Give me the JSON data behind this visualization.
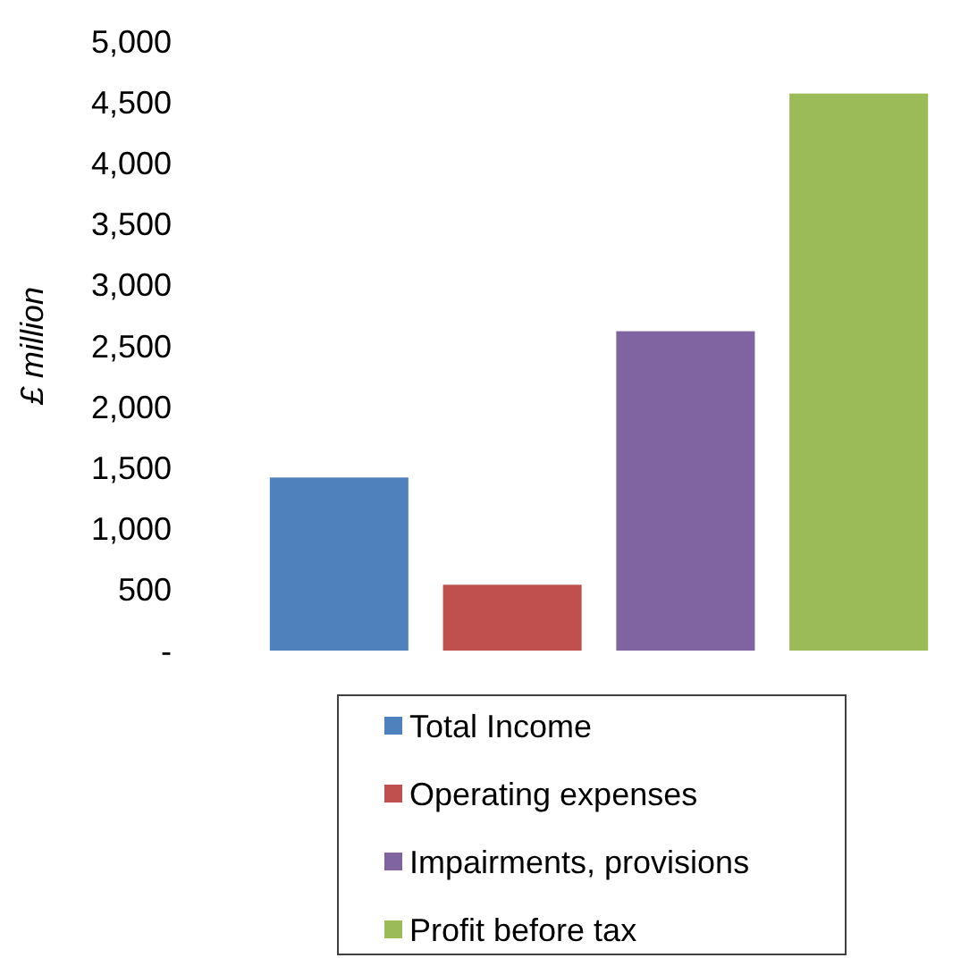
{
  "chart_data": {
    "type": "bar",
    "ylabel": "£ million",
    "categories": [
      null
    ],
    "series": [
      {
        "name": "Total Income",
        "color": "#4f81bd",
        "values": [
          1420
        ]
      },
      {
        "name": "Operating expenses",
        "color": "#c0504d",
        "values": [
          540
        ]
      },
      {
        "name": "Impairments, provisions",
        "color": "#8064a2",
        "values": [
          2620
        ]
      },
      {
        "name": "Profit before tax",
        "color": "#9bbb59",
        "values": [
          4570
        ]
      }
    ],
    "ylim": [
      0,
      5000
    ],
    "yticks": [
      {
        "value": 0,
        "label": "-"
      },
      {
        "value": 500,
        "label": "500"
      },
      {
        "value": 1000,
        "label": "1,000"
      },
      {
        "value": 1500,
        "label": "1,500"
      },
      {
        "value": 2000,
        "label": "2,000"
      },
      {
        "value": 2500,
        "label": "2,500"
      },
      {
        "value": 3000,
        "label": "3,000"
      },
      {
        "value": 3500,
        "label": "3,500"
      },
      {
        "value": 4000,
        "label": "4,000"
      },
      {
        "value": 4500,
        "label": "4,500"
      },
      {
        "value": 5000,
        "label": "5,000"
      }
    ],
    "legend": "bottom"
  }
}
